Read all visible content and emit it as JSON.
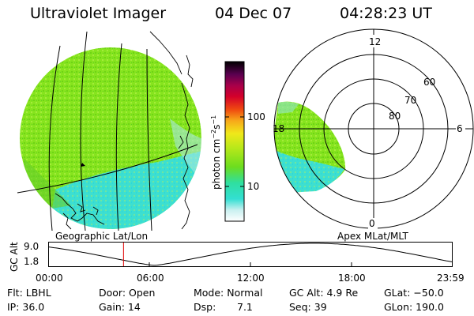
{
  "header": {
    "instrument": "Ultraviolet Imager",
    "date": "04 Dec 07",
    "time": "04:28:23 UT"
  },
  "colorbar": {
    "unit_label": "photon cm",
    "unit_exp1": "−2",
    "unit_s": "s",
    "unit_exp2": "−1",
    "tick_100": "100",
    "tick_10": "10"
  },
  "left_panel": {
    "label": "Geographic Lat/Lon"
  },
  "right_panel": {
    "label": "Apex MLat/MLT",
    "mlt_12": "12",
    "mlt_18": "18",
    "mlt_6": "6",
    "mlt_0": "0",
    "lat_60": "60",
    "lat_70": "70",
    "lat_80": "80"
  },
  "orbit_plot": {
    "ylabel": "GC Alt",
    "y_top": "9.0",
    "y_bottom": "1.8",
    "x_ticks": [
      "00:00",
      "06:00",
      "12:00",
      "18:00",
      "23:59"
    ],
    "current_time_hours": 4.47
  },
  "info": {
    "flt": "Flt: LBHL",
    "door": "Door: Open",
    "mode": "Mode: Normal",
    "gc_alt": "GC Alt: 4.9 Re",
    "glat": "GLat: −50.0",
    "ip": "IP: 36.0",
    "gain": "Gain: 14",
    "dsp_label": "Dsp:",
    "dsp_value": "7.1",
    "seq": "Seq: 39",
    "glon": "GLon: 190.0"
  },
  "colors": {
    "green": "#7fe21a",
    "cyan": "#33dfd2",
    "red_marker": "#e00000"
  }
}
